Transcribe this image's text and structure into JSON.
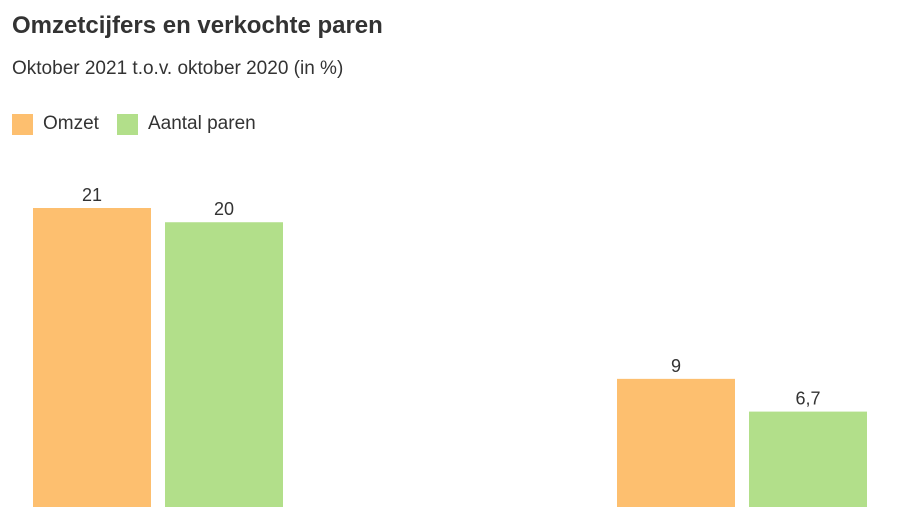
{
  "header": {
    "title": "Omzetcijfers en verkochte paren",
    "subtitle": "Oktober 2021 t.o.v. oktober 2020 (in %)"
  },
  "chart_data": {
    "type": "bar",
    "title": "Omzetcijfers en verkochte paren",
    "subtitle": "Oktober 2021 t.o.v. oktober 2020 (in %)",
    "categories": [
      "",
      ""
    ],
    "series": [
      {
        "name": "Omzet",
        "color": "#fdbf6f",
        "values": [
          21,
          9
        ],
        "labels": [
          "21",
          "9"
        ]
      },
      {
        "name": "Aantal paren",
        "color": "#b2df8a",
        "values": [
          20,
          6.7
        ],
        "labels": [
          "20",
          "6,7"
        ]
      }
    ],
    "ylim": [
      0,
      21
    ],
    "grid": false,
    "legend_position": "top-left"
  }
}
